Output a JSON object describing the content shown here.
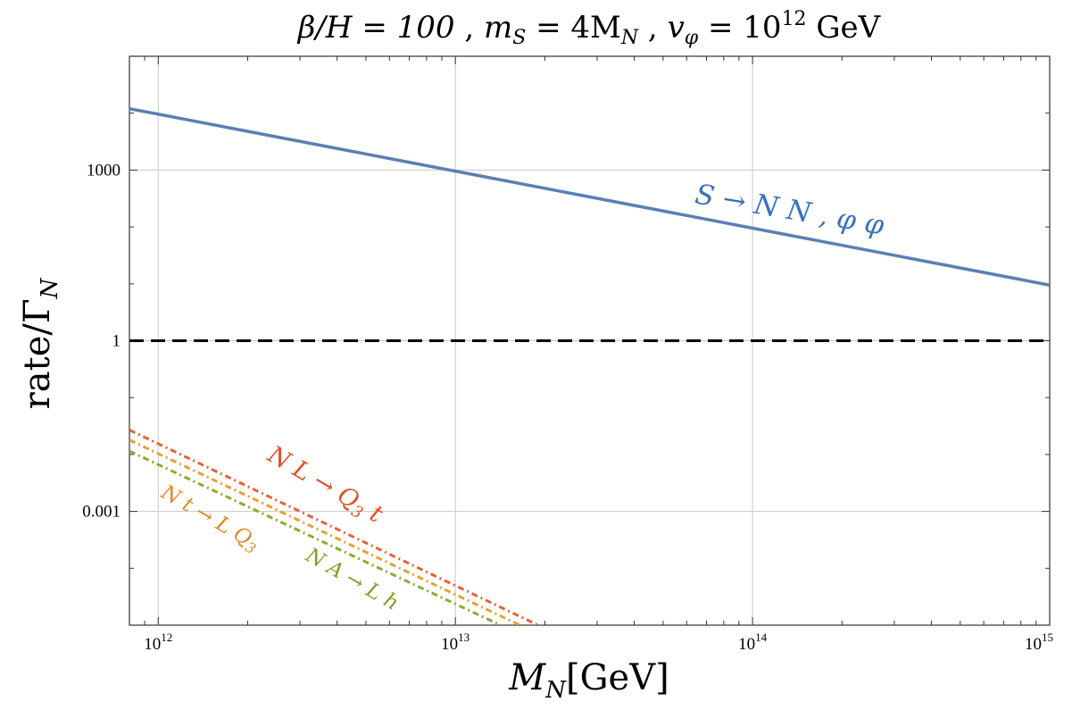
{
  "chart_data": {
    "type": "line",
    "title": "β/H = 100 , m_S = 4M_N , v_φ = 10^12 GeV",
    "title_parts": {
      "beta_h": "β/H = 100",
      "ms_base": "m",
      "ms_sub": "S",
      "ms_rhs": "= 4M",
      "ms_rhs_sub": "N",
      "v_base": "v",
      "v_sub": "φ",
      "v_rhs": "= 10",
      "v_exp": "12",
      "v_unit": "GeV"
    },
    "xlabel": "M_N[GeV]",
    "xlabel_parts": {
      "base": "M",
      "sub": "N",
      "unit": "[GeV]"
    },
    "ylabel": "rate/Γ_N",
    "ylabel_parts": {
      "base": "rate/Γ",
      "sub": "N"
    },
    "xscale": "log",
    "yscale": "log",
    "xlim": [
      800000000000.0,
      1000000000000000.0
    ],
    "ylim": [
      1e-05,
      100000.0
    ],
    "grid": true,
    "x_ticks": [
      {
        "value": 1000000000000.0,
        "base": "10",
        "exp": "12"
      },
      {
        "value": 10000000000000.0,
        "base": "10",
        "exp": "13"
      },
      {
        "value": 100000000000000.0,
        "base": "10",
        "exp": "14"
      },
      {
        "value": 1000000000000000.0,
        "base": "10",
        "exp": "15"
      }
    ],
    "y_ticks": [
      {
        "value": 1000,
        "label": "1000"
      },
      {
        "value": 1,
        "label": "1"
      },
      {
        "value": 0.001,
        "label": "0.001"
      }
    ],
    "series": [
      {
        "name": "S → N N , φ φ",
        "color": "#5B7FB5",
        "label_color": "#3A72B8",
        "dash": "solid",
        "x": [
          800000000000.0,
          1000000000000000.0
        ],
        "y": [
          12000,
          9.5
        ]
      },
      {
        "name": "N L → Q3 t",
        "color": "#E8613A",
        "label_color": "#E0502C",
        "dash": "dashdot",
        "x": [
          800000000000.0,
          19000000000000.0
        ],
        "y": [
          0.027,
          1e-05
        ]
      },
      {
        "name": "N t → L Q3",
        "color": "#E8A030",
        "label_color": "#E08A28",
        "dash": "dashdot",
        "x": [
          800000000000.0,
          16500000000000.0
        ],
        "y": [
          0.018,
          1e-05
        ]
      },
      {
        "name": "N A → L h",
        "color": "#8DAA30",
        "label_color": "#80A028",
        "dash": "dashdot",
        "x": [
          800000000000.0,
          14200000000000.0
        ],
        "y": [
          0.0115,
          1e-05
        ]
      },
      {
        "name": "rate/Γ_N = 1",
        "color": "#000000",
        "dash": "dashed",
        "x": [
          800000000000.0,
          1000000000000000.0
        ],
        "y": [
          1,
          1
        ]
      }
    ],
    "annotations": [
      {
        "text": "S → N N , φ φ",
        "series": 0
      },
      {
        "text": "N L → Q3 t",
        "series": 1
      },
      {
        "text": "N t → L Q3",
        "series": 2
      },
      {
        "text": "N A → L h",
        "series": 3
      }
    ]
  }
}
